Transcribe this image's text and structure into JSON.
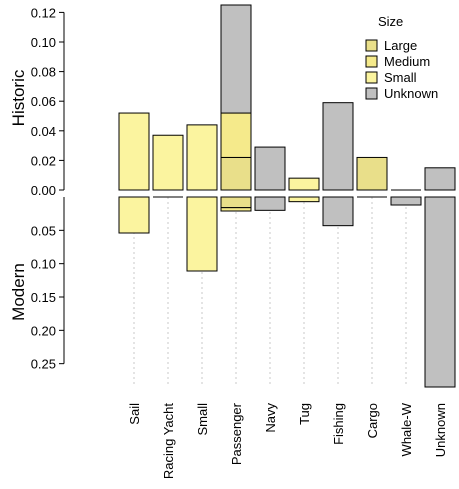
{
  "chart_data": {
    "type": "bar",
    "stacked": true,
    "categories": [
      "Sail",
      "Racing Yacht",
      "Small",
      "Passenger",
      "Navy",
      "Tug",
      "Fishing",
      "Cargo",
      "Whale-W",
      "Unknown"
    ],
    "panels": {
      "historic": {
        "label": "Historic",
        "ylim": [
          0,
          0.125
        ],
        "ticks": [
          "0.00",
          "0.02",
          "0.04",
          "0.06",
          "0.08",
          "0.10",
          "0.12"
        ],
        "tick_values": [
          0,
          0.02,
          0.04,
          0.06,
          0.08,
          0.1,
          0.12
        ]
      },
      "modern": {
        "label": "Modern",
        "ylim": [
          0,
          0.285
        ],
        "ticks": [
          "0.05",
          "0.10",
          "0.15",
          "0.20",
          "0.25"
        ],
        "tick_values": [
          0.05,
          0.1,
          0.15,
          0.2,
          0.25
        ]
      }
    },
    "legend": {
      "title": "Size",
      "position": "top-right",
      "entries": [
        {
          "name": "Large",
          "color": "#e9df8a"
        },
        {
          "name": "Medium",
          "color": "#f5ea8b"
        },
        {
          "name": "Small",
          "color": "#fbf49f"
        },
        {
          "name": "Unknown",
          "color": "#c0c0c0"
        }
      ]
    },
    "series": [
      {
        "name": "Large",
        "color": "#e9df8a",
        "historic": [
          0,
          0,
          0,
          0.022,
          0,
          0,
          0,
          0.022,
          0,
          0
        ],
        "modern": [
          0,
          0,
          0,
          0.016,
          0,
          0,
          0,
          0,
          0,
          0
        ]
      },
      {
        "name": "Medium",
        "color": "#f5ea8b",
        "historic": [
          0,
          0,
          0,
          0.03,
          0,
          0,
          0,
          0,
          0,
          0
        ],
        "modern": [
          0,
          0,
          0,
          0.005,
          0,
          0,
          0,
          0,
          0,
          0
        ]
      },
      {
        "name": "Small",
        "color": "#fbf49f",
        "historic": [
          0.052,
          0.037,
          0.044,
          0,
          0,
          0.008,
          0,
          0,
          0,
          0
        ],
        "modern": [
          0.054,
          0,
          0.111,
          0,
          0,
          0.007,
          0,
          0,
          0,
          0
        ]
      },
      {
        "name": "Unknown",
        "color": "#c0c0c0",
        "historic": [
          0,
          0,
          0,
          0.073,
          0.029,
          0,
          0.059,
          0,
          0,
          0.015
        ],
        "modern": [
          0,
          0,
          0,
          0,
          0.02,
          0,
          0.043,
          0,
          0.012,
          0.285
        ]
      }
    ],
    "grid": false,
    "category_guides": "dotted"
  }
}
